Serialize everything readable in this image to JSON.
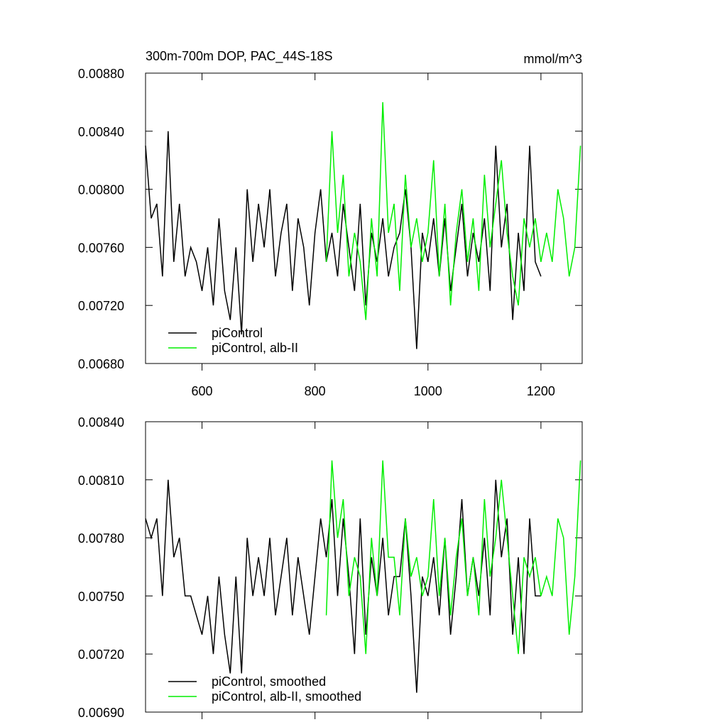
{
  "chart_data": [
    {
      "type": "line",
      "title": "300m-700m DOP, PAC_44S-18S",
      "units": "mmol/m^3",
      "xlim": [
        500,
        1273
      ],
      "ylim": [
        0.0068,
        0.0088
      ],
      "xticks": [
        600,
        800,
        1000,
        1200
      ],
      "xtick_labels": true,
      "yticks": [
        {
          "value": 0.0068,
          "label": "0.00680"
        },
        {
          "value": 0.0072,
          "label": "0.00720"
        },
        {
          "value": 0.0076,
          "label": "0.00760"
        },
        {
          "value": 0.008,
          "label": "0.00800"
        },
        {
          "value": 0.0084,
          "label": "0.00840"
        },
        {
          "value": 0.0088,
          "label": "0.00880"
        }
      ],
      "legend": "lower left",
      "series": [
        {
          "name": "piControl",
          "color": "#000000",
          "x": [
            500,
            510,
            520,
            530,
            540,
            550,
            560,
            570,
            580,
            590,
            600,
            610,
            620,
            630,
            640,
            650,
            660,
            670,
            680,
            690,
            700,
            710,
            720,
            730,
            740,
            750,
            760,
            770,
            780,
            790,
            800,
            810,
            820,
            830,
            840,
            850,
            860,
            870,
            880,
            890,
            900,
            910,
            920,
            930,
            940,
            950,
            960,
            970,
            980,
            990,
            1000,
            1010,
            1020,
            1030,
            1040,
            1050,
            1060,
            1070,
            1080,
            1090,
            1100,
            1110,
            1120,
            1130,
            1140,
            1150,
            1160,
            1170,
            1180,
            1190,
            1200
          ],
          "values": [
            0.0083,
            0.0078,
            0.0079,
            0.0074,
            0.0084,
            0.0075,
            0.0079,
            0.0074,
            0.0076,
            0.0075,
            0.0073,
            0.0076,
            0.0072,
            0.0078,
            0.0073,
            0.0071,
            0.0076,
            0.007,
            0.008,
            0.0075,
            0.0079,
            0.0076,
            0.008,
            0.0074,
            0.0077,
            0.0079,
            0.0073,
            0.0078,
            0.0076,
            0.0072,
            0.0077,
            0.008,
            0.0075,
            0.0077,
            0.0074,
            0.0079,
            0.0076,
            0.0073,
            0.0079,
            0.0072,
            0.0077,
            0.0075,
            0.0078,
            0.0074,
            0.0076,
            0.0077,
            0.008,
            0.0076,
            0.0069,
            0.0077,
            0.0075,
            0.0078,
            0.0074,
            0.0078,
            0.0073,
            0.0076,
            0.0079,
            0.0074,
            0.0077,
            0.0075,
            0.0078,
            0.0073,
            0.0083,
            0.0076,
            0.0079,
            0.0071,
            0.0077,
            0.0073,
            0.0083,
            0.0075,
            0.0074
          ]
        },
        {
          "name": "piControl, alb-II",
          "color": "#00ee00",
          "x": [
            820,
            830,
            840,
            850,
            860,
            870,
            880,
            890,
            900,
            910,
            920,
            930,
            940,
            950,
            960,
            970,
            980,
            990,
            1000,
            1010,
            1020,
            1030,
            1040,
            1050,
            1060,
            1070,
            1080,
            1090,
            1100,
            1110,
            1120,
            1130,
            1140,
            1150,
            1160,
            1170,
            1180,
            1190,
            1200,
            1210,
            1220,
            1230,
            1240,
            1250,
            1260,
            1270
          ],
          "values": [
            0.0075,
            0.0084,
            0.0077,
            0.0081,
            0.0074,
            0.0077,
            0.0075,
            0.0071,
            0.0078,
            0.0074,
            0.0086,
            0.0077,
            0.0079,
            0.0073,
            0.0081,
            0.0076,
            0.0078,
            0.0075,
            0.0077,
            0.0082,
            0.0074,
            0.0079,
            0.0072,
            0.0077,
            0.008,
            0.0075,
            0.0078,
            0.0073,
            0.0081,
            0.0076,
            0.0079,
            0.0082,
            0.0077,
            0.0074,
            0.0072,
            0.0078,
            0.0076,
            0.0078,
            0.0075,
            0.0077,
            0.0075,
            0.008,
            0.0078,
            0.0074,
            0.0076,
            0.0083
          ]
        }
      ]
    },
    {
      "type": "line",
      "xlim": [
        500,
        1273
      ],
      "ylim": [
        0.0069,
        0.0084
      ],
      "xticks": [
        600,
        800,
        1000,
        1200
      ],
      "xtick_labels": false,
      "yticks": [
        {
          "value": 0.0069,
          "label": "0.00690"
        },
        {
          "value": 0.0072,
          "label": "0.00720"
        },
        {
          "value": 0.0075,
          "label": "0.00750"
        },
        {
          "value": 0.0078,
          "label": "0.00780"
        },
        {
          "value": 0.0081,
          "label": "0.00810"
        },
        {
          "value": 0.0084,
          "label": "0.00840"
        }
      ],
      "legend": "lower left",
      "series": [
        {
          "name": "piControl, smoothed",
          "color": "#000000",
          "x": [
            500,
            510,
            520,
            530,
            540,
            550,
            560,
            570,
            580,
            590,
            600,
            610,
            620,
            630,
            640,
            650,
            660,
            670,
            680,
            690,
            700,
            710,
            720,
            730,
            740,
            750,
            760,
            770,
            780,
            790,
            800,
            810,
            820,
            830,
            840,
            850,
            860,
            870,
            880,
            890,
            900,
            910,
            920,
            930,
            940,
            950,
            960,
            970,
            980,
            990,
            1000,
            1010,
            1020,
            1030,
            1040,
            1050,
            1060,
            1070,
            1080,
            1090,
            1100,
            1110,
            1120,
            1130,
            1140,
            1150,
            1160,
            1170,
            1180,
            1190,
            1200
          ],
          "values": [
            0.0079,
            0.0078,
            0.0079,
            0.0075,
            0.0081,
            0.0077,
            0.0078,
            0.0075,
            0.0075,
            0.0074,
            0.0073,
            0.0075,
            0.0072,
            0.0076,
            0.0073,
            0.0071,
            0.0076,
            0.0071,
            0.0078,
            0.0075,
            0.0077,
            0.0075,
            0.0078,
            0.0074,
            0.0076,
            0.0078,
            0.0074,
            0.0077,
            0.0075,
            0.0073,
            0.0076,
            0.0079,
            0.0077,
            0.008,
            0.0075,
            0.0079,
            0.0076,
            0.0072,
            0.0079,
            0.0073,
            0.0077,
            0.0075,
            0.0078,
            0.0074,
            0.0076,
            0.0076,
            0.0079,
            0.0075,
            0.007,
            0.0076,
            0.0075,
            0.0077,
            0.0074,
            0.0078,
            0.0073,
            0.0076,
            0.008,
            0.0075,
            0.0077,
            0.0075,
            0.0078,
            0.0074,
            0.0081,
            0.0077,
            0.0079,
            0.0073,
            0.0077,
            0.0072,
            0.0079,
            0.0075,
            0.0075
          ]
        },
        {
          "name": "piControl, alb-II, smoothed",
          "color": "#00ee00",
          "x": [
            820,
            830,
            840,
            850,
            860,
            870,
            880,
            890,
            900,
            910,
            920,
            930,
            940,
            950,
            960,
            970,
            980,
            990,
            1000,
            1010,
            1020,
            1030,
            1040,
            1050,
            1060,
            1070,
            1080,
            1090,
            1100,
            1110,
            1120,
            1130,
            1140,
            1150,
            1160,
            1170,
            1180,
            1190,
            1200,
            1210,
            1220,
            1230,
            1240,
            1250,
            1260,
            1270
          ],
          "values": [
            0.0074,
            0.0082,
            0.0078,
            0.008,
            0.0075,
            0.0077,
            0.0076,
            0.0072,
            0.0078,
            0.0075,
            0.0082,
            0.0077,
            0.0077,
            0.0074,
            0.0079,
            0.0076,
            0.0077,
            0.0075,
            0.0076,
            0.008,
            0.0075,
            0.0078,
            0.0074,
            0.0077,
            0.0079,
            0.0075,
            0.0077,
            0.0074,
            0.008,
            0.0076,
            0.0078,
            0.0081,
            0.0078,
            0.0075,
            0.0072,
            0.0077,
            0.0076,
            0.0077,
            0.0075,
            0.0076,
            0.0075,
            0.0079,
            0.0078,
            0.0073,
            0.0076,
            0.0082
          ]
        }
      ]
    }
  ]
}
